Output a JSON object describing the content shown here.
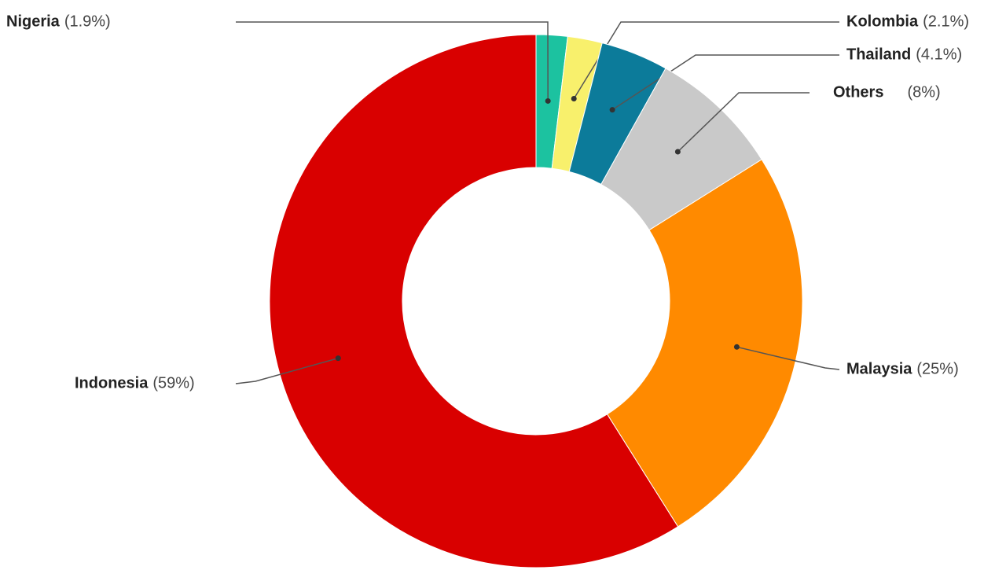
{
  "chart_data": {
    "type": "donut",
    "categories": [
      "Nigeria",
      "Kolombia",
      "Thailand",
      "Others",
      "Malaysia",
      "Indonesia"
    ],
    "values": [
      1.9,
      2.1,
      4.1,
      8,
      25,
      59
    ],
    "value_labels": [
      "(1.9%)",
      "(2.1%)",
      "(4.1%)",
      "(8%)",
      "(25%)",
      "(59%)"
    ],
    "colors": [
      "#1cc2a0",
      "#f8f06c",
      "#0c7b9a",
      "#c9c9c9",
      "#ff8a00",
      "#d90000"
    ]
  }
}
